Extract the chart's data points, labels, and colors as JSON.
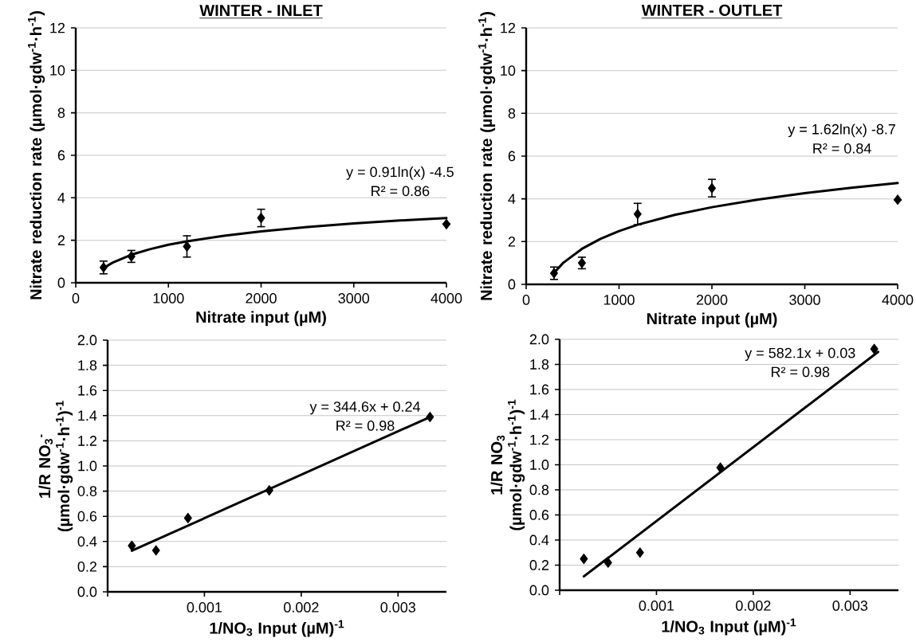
{
  "chart_data": [
    {
      "type": "scatter",
      "title": "WINTER - INLET",
      "xlabel": "Nitrate input (µM)",
      "ylabel": "Nitrate reduction rate (µmol·gdw$^{-1}$·h$^{-1}$)",
      "xlim": [
        0,
        4000
      ],
      "ylim": [
        0,
        12
      ],
      "xticks": [
        0,
        1000,
        2000,
        3000,
        4000
      ],
      "yticks": [
        0,
        2,
        4,
        6,
        8,
        10,
        12
      ],
      "grid": "y",
      "annotations": [
        "y = 0.91ln(x) -4.5",
        "R² = 0.86"
      ],
      "series": [
        {
          "color": "#000000",
          "marker": "diamond",
          "x": [
            300,
            600,
            1200,
            2000,
            4000
          ],
          "values": [
            0.72,
            1.24,
            1.71,
            3.05,
            2.76
          ],
          "errors": [
            0.3,
            0.28,
            0.5,
            0.41,
            null
          ]
        },
        {
          "type": "line",
          "color": "#000000",
          "marker": "none",
          "x": [
            300,
            400,
            600,
            800,
            1000,
            1200,
            1600,
            2000,
            2500,
            3000,
            3500,
            4000
          ],
          "values": [
            0.69,
            0.95,
            1.32,
            1.58,
            1.79,
            1.95,
            2.21,
            2.42,
            2.62,
            2.79,
            2.93,
            3.05
          ]
        }
      ]
    },
    {
      "type": "scatter",
      "title": "WINTER - OUTLET",
      "xlabel": "Nitrate input (µM)",
      "ylabel": "Nitrate reduction rate (µmol·gdw$^{-1}$·h$^{-1}$)",
      "xlim": [
        0,
        4000
      ],
      "ylim": [
        0,
        12
      ],
      "xticks": [
        0,
        1000,
        2000,
        3000,
        4000
      ],
      "yticks": [
        0,
        2,
        4,
        6,
        8,
        10,
        12
      ],
      "grid": "y",
      "annotations": [
        "y = 1.62ln(x) -8.7",
        "R² = 0.84"
      ],
      "series": [
        {
          "color": "#000000",
          "marker": "diamond",
          "x": [
            300,
            600,
            1200,
            2000,
            4000
          ],
          "values": [
            0.52,
            1.0,
            3.29,
            4.5,
            3.96
          ],
          "errors": [
            0.29,
            0.27,
            0.5,
            0.41,
            null
          ]
        },
        {
          "type": "line",
          "color": "#000000",
          "marker": "none",
          "x": [
            300,
            400,
            600,
            800,
            1000,
            1200,
            1600,
            2000,
            2500,
            3000,
            3500,
            4000
          ],
          "values": [
            0.54,
            1.01,
            1.66,
            2.13,
            2.49,
            2.79,
            3.25,
            3.61,
            3.97,
            4.27,
            4.52,
            4.74
          ]
        }
      ]
    },
    {
      "type": "scatter",
      "xlabel": "1/NO$_{3}$ Input (µM)$^{-1}$",
      "ylabel": "1/R NO$_{3}$$^{-}$ (µmol·gdw$^{-1}$·h$^{-1}$)$^{-1}$",
      "xlim": [
        0,
        0.0035
      ],
      "ylim": [
        0,
        2
      ],
      "xticks": [
        {
          "value": 0,
          "label": null
        },
        0.001,
        0.002,
        0.003
      ],
      "yticks": [
        {
          "value": 0,
          "label": "0.0"
        },
        0.2,
        0.4,
        0.6,
        0.8,
        {
          "value": 1,
          "label": "1.0"
        },
        1.2,
        1.4,
        1.6,
        1.8,
        {
          "value": 2,
          "label": "2.0"
        }
      ],
      "grid": "y",
      "annotations": [
        "y = 344.6x + 0.24",
        "R² = 0.98"
      ],
      "series": [
        {
          "color": "#000000",
          "marker": "diamond",
          "x": [
            0.00025,
            0.0005,
            0.00083,
            0.00167,
            0.00333
          ],
          "values": [
            0.366,
            0.329,
            0.586,
            0.806,
            1.389
          ]
        },
        {
          "type": "line",
          "color": "#000000",
          "marker": "none",
          "x": [
            0.00025,
            0.00333
          ],
          "values": [
            0.326,
            1.389
          ]
        }
      ]
    },
    {
      "type": "scatter",
      "xlabel": "1/NO$_{3}$ Input (µM)$^{-1}$",
      "ylabel": "1/R NO$_{3}$ (µmol·gdw$^{-1}$·h$^{-1}$)$^{-1}$",
      "xlim": [
        0,
        0.0035
      ],
      "ylim": [
        0,
        2
      ],
      "xticks": [
        {
          "value": 0,
          "label": null
        },
        0.001,
        0.002,
        0.003
      ],
      "yticks": [
        {
          "value": 0,
          "label": "0.0"
        },
        0.2,
        0.4,
        0.6,
        0.8,
        {
          "value": 1,
          "label": "1.0"
        },
        1.2,
        1.4,
        1.6,
        1.8,
        {
          "value": 2,
          "label": "2.0"
        }
      ],
      "grid": "y",
      "annotations": [
        "y = 582.1x + 0.03",
        "R² = 0.98"
      ],
      "series": [
        {
          "color": "#000000",
          "marker": "diamond",
          "x": [
            0.00025,
            0.0005,
            0.00083,
            0.00166,
            0.00325
          ],
          "values": [
            0.25,
            0.22,
            0.3,
            0.977,
            1.923
          ]
        },
        {
          "type": "line",
          "color": "#000000",
          "marker": "none",
          "x": [
            0.00025,
            0.00329
          ],
          "values": [
            0.11,
            1.9
          ]
        }
      ]
    }
  ]
}
